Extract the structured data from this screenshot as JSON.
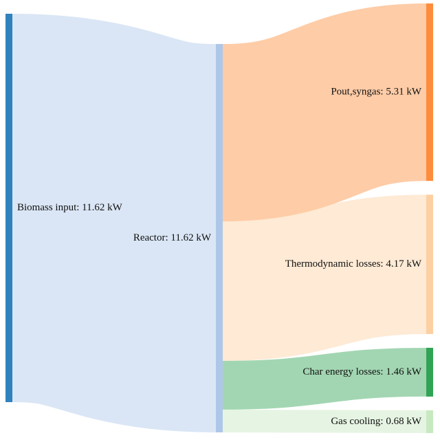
{
  "chart_data": {
    "type": "sankey",
    "nodes": [
      {
        "label": "Biomass input: 11.62 kW",
        "color": "#3182bd"
      },
      {
        "label": "Reactor: 11.62 kW",
        "color": "#aec7e8"
      },
      {
        "label": "Pout,syngas: 5.31 kW",
        "color": "#fd8d3c"
      },
      {
        "label": "Thermodynamic losses: 4.17 kW",
        "color": "#fdd0a2"
      },
      {
        "label": "Char energy losses: 1.46 kW",
        "color": "#31a354"
      },
      {
        "label": "Gas cooling: 0.68 kW",
        "color": "#c7e9c0"
      }
    ],
    "links": [
      {
        "source": 0,
        "target": 1,
        "value": 11.62
      },
      {
        "source": 1,
        "target": 2,
        "value": 5.31
      },
      {
        "source": 1,
        "target": 3,
        "value": 4.17
      },
      {
        "source": 1,
        "target": 4,
        "value": 1.46
      },
      {
        "source": 1,
        "target": 5,
        "value": 0.68
      }
    ]
  }
}
